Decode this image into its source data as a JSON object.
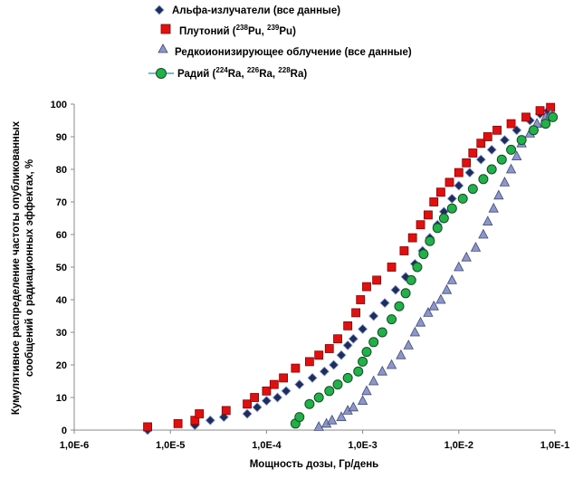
{
  "chart_data": {
    "type": "scatter",
    "xscale": "log",
    "xlim": [
      1e-06,
      0.1
    ],
    "ylim": [
      0,
      100
    ],
    "xlabel": "Мощность дозы, Гр/день",
    "ylabel_lines": [
      "Кумулятивное распределение частоты опубликованных",
      "сообщений о радиационных эффектах, %"
    ],
    "x_tick_labels": [
      "1,0E-6",
      "1,0E-5",
      "1,0E-4",
      "1,0E-3",
      "1,0E-2",
      "1,0E-1"
    ],
    "y_tick_labels": [
      "0",
      "10",
      "20",
      "30",
      "40",
      "50",
      "60",
      "70",
      "80",
      "90",
      "100"
    ],
    "legend": {
      "alpha": "Альфа-излучатели (все данные)",
      "pu_prefix": "Плутоний (",
      "pu_iso1_mass": "238",
      "pu_iso1_sym": "Pu",
      "pu_sep": ", ",
      "pu_iso2_mass": "239",
      "pu_iso2_sym": "Pu",
      "pu_suffix": ")",
      "sparse": "Редкоионизирующее облучение (все данные)",
      "ra_prefix": "Радий (",
      "ra_iso1_mass": "224",
      "ra_iso1_sym": "Ra",
      "ra_iso2_mass": "226",
      "ra_iso2_sym": "Ra",
      "ra_iso3_mass": "228",
      "ra_iso3_sym": "Ra",
      "ra_sep": ", ",
      "ra_suffix": ")"
    },
    "series": [
      {
        "key": "alpha",
        "name": "Альфа-излучатели (все данные)",
        "marker": "diamond",
        "color": "#1f2d5c",
        "edge": "#8fa6d8",
        "points": [
          [
            5.8e-06,
            0
          ],
          [
            1.8e-05,
            1.5
          ],
          [
            2.6e-05,
            3
          ],
          [
            3.6e-05,
            4
          ],
          [
            6.3e-05,
            5
          ],
          [
            8e-05,
            7
          ],
          [
            0.0001,
            9
          ],
          [
            0.00013,
            10
          ],
          [
            0.00016,
            12
          ],
          [
            0.00022,
            14
          ],
          [
            0.0003,
            16
          ],
          [
            0.0004,
            18
          ],
          [
            0.0005,
            20
          ],
          [
            0.0006,
            23
          ],
          [
            0.0007,
            26
          ],
          [
            0.0008,
            28
          ],
          [
            0.001,
            31
          ],
          [
            0.0013,
            35
          ],
          [
            0.0017,
            39
          ],
          [
            0.0022,
            43
          ],
          [
            0.0028,
            47
          ],
          [
            0.0035,
            51
          ],
          [
            0.0042,
            55
          ],
          [
            0.005,
            59
          ],
          [
            0.006,
            63
          ],
          [
            0.007,
            67
          ],
          [
            0.0085,
            71
          ],
          [
            0.01,
            75
          ],
          [
            0.013,
            79
          ],
          [
            0.017,
            83
          ],
          [
            0.022,
            86
          ],
          [
            0.03,
            89
          ],
          [
            0.04,
            92
          ],
          [
            0.055,
            95
          ],
          [
            0.07,
            97
          ],
          [
            0.085,
            98
          ]
        ]
      },
      {
        "key": "pu",
        "name": "Плутоний (238Pu, 239Pu)",
        "marker": "square",
        "color": "#e01010",
        "edge": "#8a0000",
        "points": [
          [
            5.8e-06,
            1
          ],
          [
            1.2e-05,
            2
          ],
          [
            1.8e-05,
            3
          ],
          [
            2e-05,
            5
          ],
          [
            3.8e-05,
            6
          ],
          [
            6.3e-05,
            8
          ],
          [
            7.5e-05,
            10
          ],
          [
            0.0001,
            12
          ],
          [
            0.00012,
            14
          ],
          [
            0.00015,
            16
          ],
          [
            0.0002,
            19
          ],
          [
            0.00028,
            21
          ],
          [
            0.00035,
            23
          ],
          [
            0.00045,
            25
          ],
          [
            0.00055,
            28
          ],
          [
            0.0007,
            32
          ],
          [
            0.00085,
            36
          ],
          [
            0.00095,
            40
          ],
          [
            0.0011,
            44
          ],
          [
            0.0014,
            46
          ],
          [
            0.002,
            50
          ],
          [
            0.0027,
            55
          ],
          [
            0.0033,
            59
          ],
          [
            0.004,
            63
          ],
          [
            0.0048,
            66
          ],
          [
            0.0055,
            70
          ],
          [
            0.0065,
            73
          ],
          [
            0.008,
            76
          ],
          [
            0.01,
            79
          ],
          [
            0.012,
            82
          ],
          [
            0.014,
            85
          ],
          [
            0.017,
            88
          ],
          [
            0.02,
            90
          ],
          [
            0.025,
            92
          ],
          [
            0.035,
            94
          ],
          [
            0.05,
            96
          ],
          [
            0.07,
            98
          ],
          [
            0.09,
            99
          ]
        ]
      },
      {
        "key": "sparse",
        "name": "Редкоионизирующее облучение (все данные)",
        "marker": "triangle",
        "color": "#8c96c8",
        "edge": "#3e4a7a",
        "points": [
          [
            0.00035,
            1
          ],
          [
            0.00042,
            2
          ],
          [
            0.00048,
            3
          ],
          [
            0.0006,
            4
          ],
          [
            0.0007,
            6
          ],
          [
            0.0008,
            7
          ],
          [
            0.001,
            9
          ],
          [
            0.0011,
            12
          ],
          [
            0.0013,
            15
          ],
          [
            0.0016,
            18
          ],
          [
            0.002,
            20
          ],
          [
            0.0025,
            23
          ],
          [
            0.003,
            26
          ],
          [
            0.0035,
            30
          ],
          [
            0.004,
            33
          ],
          [
            0.0048,
            36
          ],
          [
            0.0055,
            38
          ],
          [
            0.0065,
            40
          ],
          [
            0.0075,
            43
          ],
          [
            0.0085,
            46
          ],
          [
            0.01,
            50
          ],
          [
            0.012,
            53
          ],
          [
            0.015,
            56
          ],
          [
            0.018,
            60
          ],
          [
            0.02,
            64
          ],
          [
            0.023,
            68
          ],
          [
            0.026,
            72
          ],
          [
            0.03,
            76
          ],
          [
            0.035,
            80
          ],
          [
            0.04,
            84
          ],
          [
            0.045,
            88
          ],
          [
            0.055,
            91
          ],
          [
            0.065,
            94
          ],
          [
            0.08,
            96
          ],
          [
            0.09,
            97
          ]
        ]
      },
      {
        "key": "ra",
        "name": "Радий (224Ra, 226Ra, 228Ra)",
        "marker": "circle",
        "color": "#22b04a",
        "edge": "#114d22",
        "points": [
          [
            0.0002,
            2
          ],
          [
            0.00022,
            4
          ],
          [
            0.00028,
            8
          ],
          [
            0.00035,
            10
          ],
          [
            0.00045,
            12
          ],
          [
            0.00055,
            14
          ],
          [
            0.0007,
            16
          ],
          [
            0.0009,
            18
          ],
          [
            0.001,
            21
          ],
          [
            0.0011,
            24
          ],
          [
            0.0013,
            27
          ],
          [
            0.0016,
            30
          ],
          [
            0.002,
            34
          ],
          [
            0.0024,
            38
          ],
          [
            0.0028,
            42
          ],
          [
            0.0032,
            46
          ],
          [
            0.0037,
            50
          ],
          [
            0.0043,
            54
          ],
          [
            0.005,
            58
          ],
          [
            0.006,
            62
          ],
          [
            0.007,
            65
          ],
          [
            0.0085,
            68
          ],
          [
            0.011,
            71
          ],
          [
            0.014,
            74
          ],
          [
            0.018,
            77
          ],
          [
            0.022,
            80
          ],
          [
            0.028,
            83
          ],
          [
            0.035,
            86
          ],
          [
            0.045,
            89
          ],
          [
            0.06,
            92
          ],
          [
            0.08,
            94
          ],
          [
            0.095,
            96
          ]
        ]
      }
    ]
  }
}
